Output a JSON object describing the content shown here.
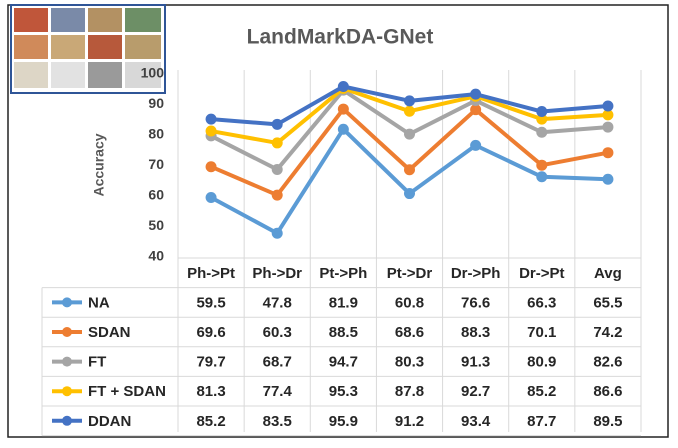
{
  "chart_data": {
    "type": "line",
    "title": "LandMarkDA-GNet",
    "y_label": "Accuracy",
    "categories": [
      "Ph->Pt",
      "Ph->Dr",
      "Pt->Ph",
      "Pt->Dr",
      "Dr->Ph",
      "Dr->Pt",
      "Avg"
    ],
    "series": [
      {
        "name": "NA",
        "color": "#5b9bd5",
        "values": [
          59.5,
          47.8,
          81.9,
          60.8,
          76.6,
          66.3,
          65.5
        ]
      },
      {
        "name": "SDAN",
        "color": "#ed7d31",
        "values": [
          69.6,
          60.3,
          88.5,
          68.6,
          88.3,
          70.1,
          74.2
        ]
      },
      {
        "name": "FT",
        "color": "#a5a5a5",
        "values": [
          79.7,
          68.7,
          94.7,
          80.3,
          91.3,
          80.9,
          82.6
        ]
      },
      {
        "name": "FT + SDAN",
        "color": "#ffc000",
        "values": [
          81.3,
          77.4,
          95.3,
          87.8,
          92.7,
          85.2,
          86.6
        ]
      },
      {
        "name": "DDAN",
        "color": "#4472c4",
        "values": [
          85.2,
          83.5,
          95.9,
          91.2,
          93.4,
          87.7,
          89.5
        ]
      }
    ],
    "ylim": [
      40,
      100
    ],
    "yticks": [
      40,
      50,
      60,
      70,
      80,
      90,
      100
    ],
    "grid": false
  }
}
